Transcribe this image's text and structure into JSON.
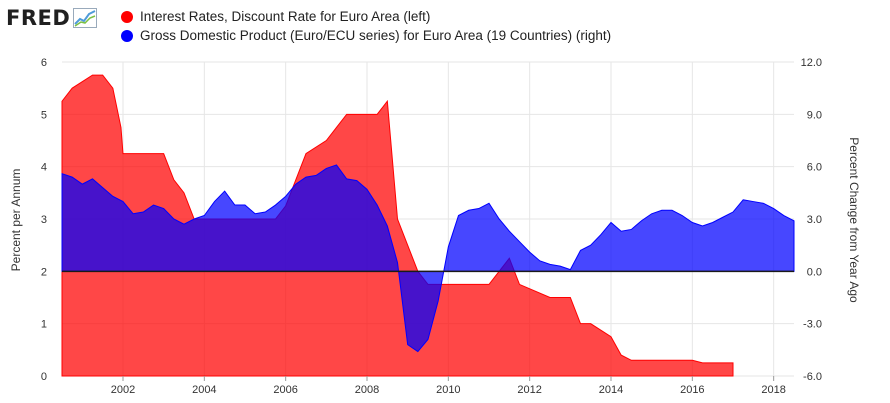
{
  "logo": {
    "text": "FRED"
  },
  "legend": [
    {
      "label": "Interest Rates, Discount Rate for Euro Area (left)",
      "color": "#ff0000"
    },
    {
      "label": "Gross Domestic Product (Euro/ECU series) for Euro Area (19 Countries) (right)",
      "color": "#0000ff"
    }
  ],
  "chart_data": {
    "type": "area",
    "ylabel_left": "Percent per Annum",
    "ylabel_right": "Percent Change from Year Ago",
    "x_ticks": [
      "2002",
      "2004",
      "2006",
      "2008",
      "2010",
      "2012",
      "2014",
      "2016",
      "2018"
    ],
    "ylim_left": [
      0,
      6
    ],
    "ylim_right": [
      -6,
      12
    ],
    "y_ticks_left": [
      "0",
      "1",
      "2",
      "3",
      "4",
      "5",
      "6"
    ],
    "y_ticks_right": [
      "-6.0",
      "-3.0",
      "0.0",
      "3.0",
      "6.0",
      "9.0",
      "12.0"
    ],
    "grid": true,
    "series": [
      {
        "name": "Interest Rates, Discount Rate for Euro Area (left)",
        "color": "#ff0000",
        "axis": "left",
        "x": [
          2000.5,
          2000.75,
          2000.75,
          2001.25,
          2001.5,
          2001.75,
          2001.75,
          2001.95,
          2002.0,
          2002.5,
          2003.0,
          2003.25,
          2003.5,
          2003.75,
          2005.75,
          2006.0,
          2006.5,
          2007.0,
          2007.5,
          2008.25,
          2008.5,
          2008.75,
          2009.0,
          2009.25,
          2009.5,
          2011.0,
          2011.25,
          2011.5,
          2011.75,
          2012.5,
          2013.0,
          2013.25,
          2013.5,
          2014.0,
          2014.25,
          2014.5,
          2016.0,
          2016.25,
          2017.0
        ],
        "y": [
          5.25,
          5.5,
          5.5,
          5.75,
          5.75,
          5.5,
          5.5,
          4.75,
          4.25,
          4.25,
          4.25,
          3.75,
          3.5,
          3.0,
          3.0,
          3.25,
          4.25,
          4.5,
          5.0,
          5.0,
          5.25,
          3.0,
          2.5,
          2.0,
          1.75,
          1.75,
          2.0,
          2.25,
          1.75,
          1.5,
          1.5,
          1.0,
          1.0,
          0.75,
          0.4,
          0.3,
          0.3,
          0.25,
          0.25
        ]
      },
      {
        "name": "Gross Domestic Product (Euro/ECU series) for Euro Area (19 Countries) (right)",
        "color": "#0000ff",
        "axis": "right",
        "x": [
          2000.5,
          2000.75,
          2001.0,
          2001.25,
          2001.5,
          2001.75,
          2002.0,
          2002.25,
          2002.5,
          2002.75,
          2003.0,
          2003.25,
          2003.5,
          2003.75,
          2004.0,
          2004.25,
          2004.5,
          2004.75,
          2005.0,
          2005.25,
          2005.5,
          2005.75,
          2006.0,
          2006.25,
          2006.5,
          2006.75,
          2007.0,
          2007.25,
          2007.5,
          2007.75,
          2008.0,
          2008.25,
          2008.5,
          2008.75,
          2009.0,
          2009.25,
          2009.5,
          2009.75,
          2010.0,
          2010.25,
          2010.5,
          2010.75,
          2011.0,
          2011.25,
          2011.5,
          2011.75,
          2012.0,
          2012.25,
          2012.5,
          2012.75,
          2013.0,
          2013.25,
          2013.5,
          2013.75,
          2014.0,
          2014.25,
          2014.5,
          2014.75,
          2015.0,
          2015.25,
          2015.5,
          2015.75,
          2016.0,
          2016.25,
          2016.5,
          2016.75,
          2017.0,
          2017.25,
          2017.5,
          2017.75,
          2018.0,
          2018.25,
          2018.5
        ],
        "y": [
          5.6,
          5.4,
          5.0,
          5.3,
          4.8,
          4.3,
          4.0,
          3.3,
          3.4,
          3.8,
          3.6,
          3.0,
          2.7,
          3.0,
          3.2,
          4.0,
          4.6,
          3.8,
          3.8,
          3.3,
          3.4,
          3.8,
          4.3,
          5.0,
          5.4,
          5.5,
          5.9,
          6.1,
          5.3,
          5.2,
          4.7,
          3.8,
          2.6,
          0.5,
          -4.2,
          -4.6,
          -3.9,
          -1.7,
          1.4,
          3.2,
          3.5,
          3.6,
          3.9,
          3.0,
          2.3,
          1.7,
          1.1,
          0.6,
          0.4,
          0.3,
          0.1,
          1.2,
          1.5,
          2.1,
          2.8,
          2.3,
          2.4,
          2.9,
          3.3,
          3.5,
          3.5,
          3.2,
          2.8,
          2.6,
          2.8,
          3.1,
          3.4,
          4.1,
          4.0,
          3.9,
          3.6,
          3.2,
          2.9
        ]
      }
    ]
  }
}
